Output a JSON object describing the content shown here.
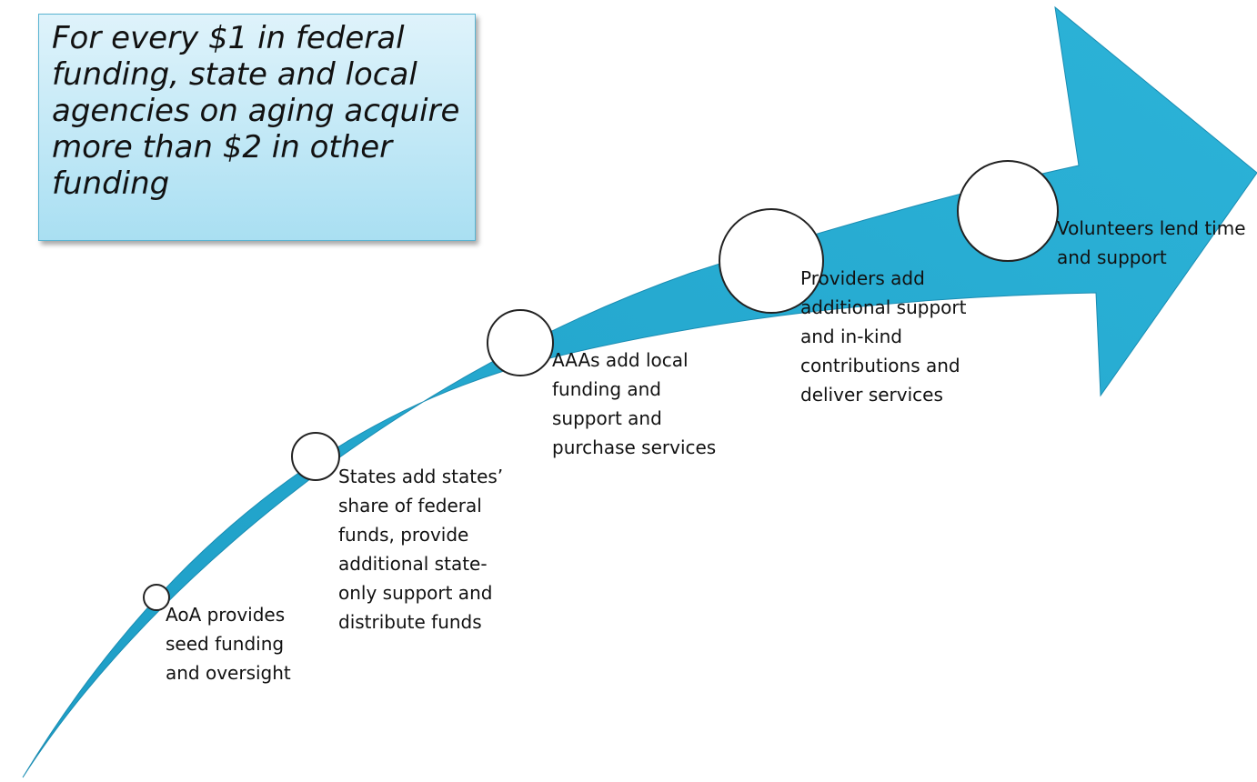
{
  "callout": "For every $1 in federal funding, state and local agencies on aging acquire more than $2 in other funding",
  "steps": [
    {
      "label": "AoA provides seed funding and oversight"
    },
    {
      "label": "States add states’ share of federal funds, provide additional state-only support and distribute funds"
    },
    {
      "label": "AAAs add local funding and support and purchase services"
    },
    {
      "label": "Providers add additional support and in-kind contributions and deliver services"
    },
    {
      "label": "Volunteers lend time and support"
    }
  ]
}
